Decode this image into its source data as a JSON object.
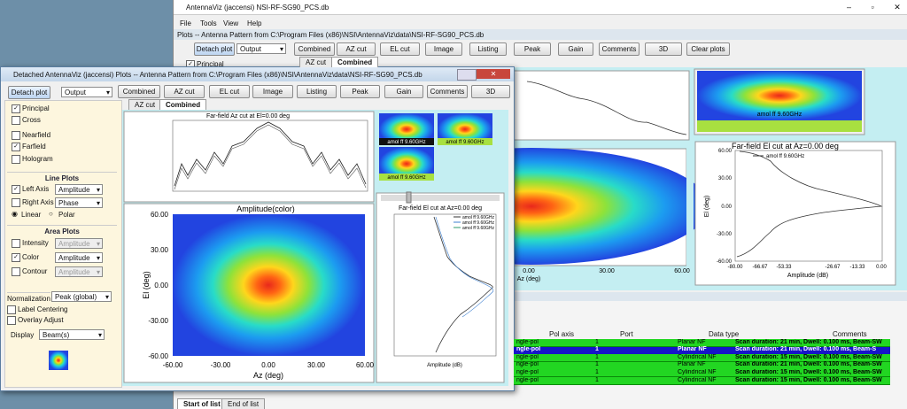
{
  "main": {
    "title": "AntennaViz (jaccensi) NSI-RF-SG90_PCS.db",
    "menu": [
      "File",
      "Tools",
      "View",
      "Help"
    ],
    "plots_title": "Plots -- Antenna Pattern from C:\\Program Files (x86)\\NSI\\AntennaViz\\data\\NSI-RF-SG90_PCS.db",
    "detach": "Detach plot",
    "output": "Output",
    "toolbar": [
      "Combined",
      "AZ cut",
      "EL cut",
      "Image",
      "Listing",
      "Peak",
      "Gain",
      "Comments",
      "3D",
      "Clear plots"
    ],
    "tabs": [
      "AZ cut",
      "Combined"
    ],
    "principal": "Principal",
    "heatmap_label": "amol ff 9.60GHz",
    "center_x_ticks": [
      "0.00",
      "30.00",
      "60.00"
    ],
    "center_x_label": "Az (deg)",
    "el_plot": {
      "title": "Far-field El cut at Az=0.00 deg",
      "legend": "amol ff 9.60GHz",
      "y_ticks": [
        "60.00",
        "30.00",
        "0.00",
        "-30.00",
        "-60.00"
      ],
      "x_ticks": [
        "-80.00",
        "-66.67",
        "-53.33",
        "-26.67",
        "-13.33",
        "0.00"
      ],
      "y_label": "El (deg)",
      "x_label": "Amplitude (dB)"
    },
    "table": {
      "columns": [
        "Pol axis",
        "Port",
        "Data type",
        "Comments"
      ],
      "rows": [
        [
          "ngle-pol",
          "1",
          "Planar NF",
          "Scan duration: 21 min, Dwell: 0.100 ms, Beam-SW"
        ],
        [
          "ngle-pol",
          "1",
          "Planar NF",
          "Scan duration: 21 min, Dwell: 0.100 ms, Beam-S"
        ],
        [
          "ngle-pol",
          "1",
          "Cylindrical NF",
          "Scan duration: 15 min, Dwell: 0.100 ms, Beam-SW"
        ],
        [
          "ngle-pol",
          "1",
          "Planar NF",
          "Scan duration: 21 min, Dwell: 0.100 ms, Beam-SW"
        ],
        [
          "ngle-pol",
          "1",
          "Cylindrical NF",
          "Scan duration: 15 min, Dwell: 0.100 ms, Beam-SW"
        ],
        [
          "ngle-pol",
          "1",
          "Cylindrical NF",
          "Scan duration: 15 min, Dwell: 0.100 ms, Beam-SW"
        ]
      ]
    },
    "bottom_tabs": [
      "Start of list",
      "End of list"
    ]
  },
  "detached": {
    "title": "Detached AntennaViz (jaccensi) Plots -- Antenna Pattern from C:\\Program Files (x86)\\NSI\\AntennaViz\\data\\NSI-RF-SG90_PCS.db",
    "detach": "Detach plot",
    "output": "Output",
    "toolbar": [
      "Combined",
      "AZ cut",
      "EL cut",
      "Image",
      "Listing",
      "Peak",
      "Gain",
      "Comments",
      "3D"
    ],
    "tabs": [
      "AZ cut",
      "Combined"
    ],
    "panel": {
      "principal": "Principal",
      "cross": "Cross",
      "nearfield": "Nearfield",
      "farfield": "Farfield",
      "hologram": "Hologram",
      "line_plots": "Line Plots",
      "left_axis": "Left Axis",
      "left_axis_value": "Amplitude",
      "right_axis": "Right Axis",
      "right_axis_value": "Phase",
      "linear": "Linear",
      "polar": "Polar",
      "area_plots": "Area Plots",
      "intensity": "Intensity",
      "intensity_value": "Amplitude",
      "color": "Color",
      "color_value": "Amplitude",
      "contour": "Contour",
      "contour_value": "Amplitude",
      "normalization": "Normalization",
      "normalization_value": "Peak (global)",
      "label_centering": "Label Centering",
      "overlay_adjust": "Overlay Adjust",
      "display": "Display",
      "display_value": "Beam(s)"
    },
    "az_plot_title": "Far-field Az cut at El=0.00 deg",
    "thumb_label": "amol ff 9.60GHz",
    "amp_plot": {
      "title": "Amplitude(color)",
      "y_ticks": [
        "60.00",
        "30.00",
        "0.00",
        "-30.00",
        "-60.00"
      ],
      "x_ticks": [
        "-60.00",
        "-30.00",
        "0.00",
        "30.00",
        "60.00"
      ],
      "y_label": "El (deg)",
      "x_label": "Az (deg)"
    },
    "el_plot": {
      "title": "Far-field El cut at Az=0.00 deg",
      "legend": [
        "amol ff 9.60GHz",
        "amol ff 9.60GHz",
        "amol ff 9.60GHz"
      ],
      "x_label": "Amplitude (dB)"
    }
  }
}
